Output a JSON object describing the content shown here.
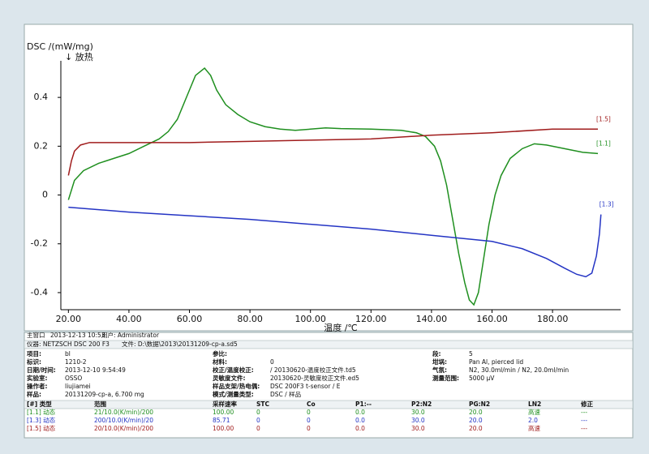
{
  "chart_data": {
    "type": "line",
    "ylabel": "DSC /(mW/mg)",
    "ylabel_note": "↓ 放热",
    "xlabel": "温度 /℃",
    "xlim": [
      17.5,
      202.5
    ],
    "ylim": [
      -0.47,
      0.55
    ],
    "xticks": [
      {
        "value": 20,
        "label": "20.00"
      },
      {
        "value": 40,
        "label": "40.00"
      },
      {
        "value": 60,
        "label": "60.00"
      },
      {
        "value": 80,
        "label": "80.00"
      },
      {
        "value": 100,
        "label": "100.00"
      },
      {
        "value": 120,
        "label": "120.00"
      },
      {
        "value": 140,
        "label": "140.00"
      },
      {
        "value": 160,
        "label": "160.00"
      },
      {
        "value": 180,
        "label": "180.00"
      }
    ],
    "yticks": [
      0.4,
      0.2,
      0,
      -0.2,
      -0.4
    ],
    "grid": false,
    "series": [
      {
        "name": "[1.1]",
        "color": "#1f8f1f",
        "x": [
          20,
          22,
          25,
          30,
          35,
          40,
          45,
          50,
          53,
          56,
          59,
          62,
          65,
          67,
          69,
          72,
          76,
          80,
          85,
          90,
          95,
          100,
          105,
          110,
          120,
          130,
          135,
          138,
          141,
          143,
          145,
          147,
          149,
          151,
          152.5,
          154,
          155.5,
          157,
          159,
          161,
          163,
          166,
          170,
          174,
          178,
          182,
          186,
          190,
          195
        ],
        "values": [
          -0.02,
          0.06,
          0.1,
          0.13,
          0.15,
          0.17,
          0.2,
          0.23,
          0.26,
          0.31,
          0.4,
          0.49,
          0.52,
          0.49,
          0.43,
          0.37,
          0.33,
          0.3,
          0.28,
          0.27,
          0.265,
          0.27,
          0.275,
          0.272,
          0.27,
          0.265,
          0.255,
          0.24,
          0.2,
          0.14,
          0.04,
          -0.1,
          -0.24,
          -0.36,
          -0.43,
          -0.45,
          -0.4,
          -0.28,
          -0.12,
          0.0,
          0.08,
          0.15,
          0.19,
          0.21,
          0.205,
          0.195,
          0.185,
          0.175,
          0.17
        ]
      },
      {
        "name": "[1.3]",
        "color": "#2434c4",
        "x": [
          20,
          30,
          40,
          60,
          80,
          100,
          120,
          140,
          160,
          170,
          178,
          184,
          188,
          191,
          193,
          194.5,
          195.5,
          196
        ],
        "values": [
          -0.05,
          -0.06,
          -0.07,
          -0.085,
          -0.1,
          -0.12,
          -0.14,
          -0.165,
          -0.19,
          -0.22,
          -0.26,
          -0.3,
          -0.325,
          -0.335,
          -0.32,
          -0.25,
          -0.16,
          -0.08
        ]
      },
      {
        "name": "[1.5]",
        "color": "#a01c1c",
        "x": [
          20,
          21,
          22,
          24,
          27,
          40,
          60,
          80,
          100,
          120,
          140,
          160,
          180,
          195
        ],
        "values": [
          0.08,
          0.14,
          0.18,
          0.205,
          0.215,
          0.215,
          0.215,
          0.22,
          0.225,
          0.23,
          0.245,
          0.255,
          0.27,
          0.27
        ]
      }
    ]
  },
  "status": {
    "window": "主窗口",
    "time": "2013-12-13 10:53",
    "user": "用户: Administrator"
  },
  "header": {
    "instrument": "仪器: NETZSCH DSC 200 F3",
    "file": "文件: D:\\数据\\2013\\20131209-cp-a.sd5"
  },
  "info": [
    [
      [
        "项目:",
        "bl"
      ],
      [
        "参比:",
        ""
      ],
      [
        "段:",
        "5"
      ]
    ],
    [
      [
        "标识:",
        "1210-2"
      ],
      [
        "材料:",
        "0"
      ],
      [
        "坩埚:",
        "Pan Al, pierced lid"
      ]
    ],
    [
      [
        "日期/时间:",
        "2013-12-10 9:54:49"
      ],
      [
        "校正/温度校正:",
        "/ 20130620-温度校正文件.td5"
      ],
      [
        "气氛:",
        "N2, 30.0ml/min / N2, 20.0ml/min"
      ]
    ],
    [
      [
        "实验室:",
        "OSSO"
      ],
      [
        "灵敏度文件:",
        "20130620-灵敏度校正文件.ed5"
      ],
      [
        "测量范围:",
        "5000 µV"
      ]
    ],
    [
      [
        "操作者:",
        "liujiamei"
      ],
      [
        "样品支架/热电偶:",
        "DSC 200F3 t-sensor / E"
      ]
    ],
    [
      [
        "样品:",
        "20131209-cp-a, 6.700 mg"
      ],
      [
        "模式/测量类型:",
        "DSC / 样品"
      ]
    ]
  ],
  "table": {
    "header": [
      "[#] 类型",
      "范围",
      "采样速率",
      "STC",
      "Co",
      "P1:--",
      "P2:N2",
      "PG:N2",
      "LN2",
      "修正"
    ],
    "rows": [
      [
        "[1.1] 动态",
        "21/10.0(K/min)/200",
        "100.00",
        "0",
        "0",
        "0.0",
        "30.0",
        "20.0",
        "高速",
        "---"
      ],
      [
        "[1.3] 动态",
        "200/10.0(K/min)/20",
        "85.71",
        "0",
        "0",
        "0.0",
        "30.0",
        "20.0",
        "2.0",
        "---"
      ],
      [
        "[1.5] 动态",
        "20/10.0(K/min)/200",
        "100.00",
        "0",
        "0",
        "0.0",
        "30.0",
        "20.0",
        "高速",
        "---"
      ]
    ]
  }
}
